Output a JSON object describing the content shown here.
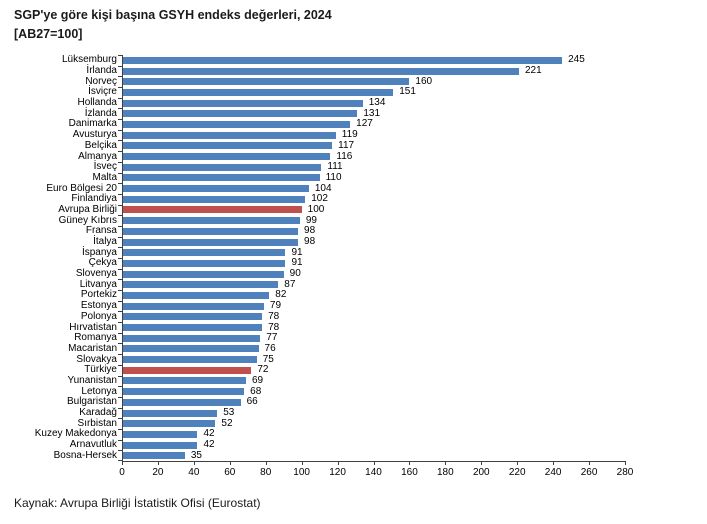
{
  "title": {
    "line1": "SGP'ye göre kişi başına GSYH endeks değerleri, 2024",
    "line2": "[AB27=100]"
  },
  "source": "Kaynak: Avrupa Birliği İstatistik Ofisi (Eurostat)",
  "colors": {
    "bar_default": "#4F81BD",
    "bar_highlight": "#C0504D",
    "axis": "#404040",
    "text": "#000000"
  },
  "chart_data": {
    "type": "bar",
    "orientation": "horizontal",
    "title": "SGP'ye göre kişi başına GSYH endeks değerleri, 2024 [AB27=100]",
    "categories": [
      "Lüksemburg",
      "İrlanda",
      "Norveç",
      "İsviçre",
      "Hollanda",
      "İzlanda",
      "Danimarka",
      "Avusturya",
      "Belçika",
      "Almanya",
      "İsveç",
      "Malta",
      "Euro Bölgesi 20",
      "Finlandiya",
      "Avrupa Birliği",
      "Güney Kıbrıs",
      "Fransa",
      "İtalya",
      "İspanya",
      "Çekya",
      "Slovenya",
      "Litvanya",
      "Portekiz",
      "Estonya",
      "Polonya",
      "Hırvatistan",
      "Romanya",
      "Macaristan",
      "Slovakya",
      "Türkiye",
      "Yunanistan",
      "Letonya",
      "Bulgaristan",
      "Karadağ",
      "Sırbistan",
      "Kuzey Makedonya",
      "Arnavutluk",
      "Bosna-Hersek"
    ],
    "values": [
      245,
      221,
      160,
      151,
      134,
      131,
      127,
      119,
      117,
      116,
      111,
      110,
      104,
      102,
      100,
      99,
      98,
      98,
      91,
      91,
      90,
      87,
      82,
      79,
      78,
      78,
      77,
      76,
      75,
      72,
      69,
      68,
      66,
      53,
      52,
      42,
      42,
      35
    ],
    "highlighted_categories": [
      "Avrupa Birliği",
      "Türkiye"
    ],
    "value_labels": true,
    "xlim": [
      0,
      280
    ],
    "x_ticks": [
      0,
      20,
      40,
      60,
      80,
      100,
      120,
      140,
      160,
      180,
      200,
      220,
      240,
      260,
      280
    ],
    "legend": false,
    "grid": false
  }
}
